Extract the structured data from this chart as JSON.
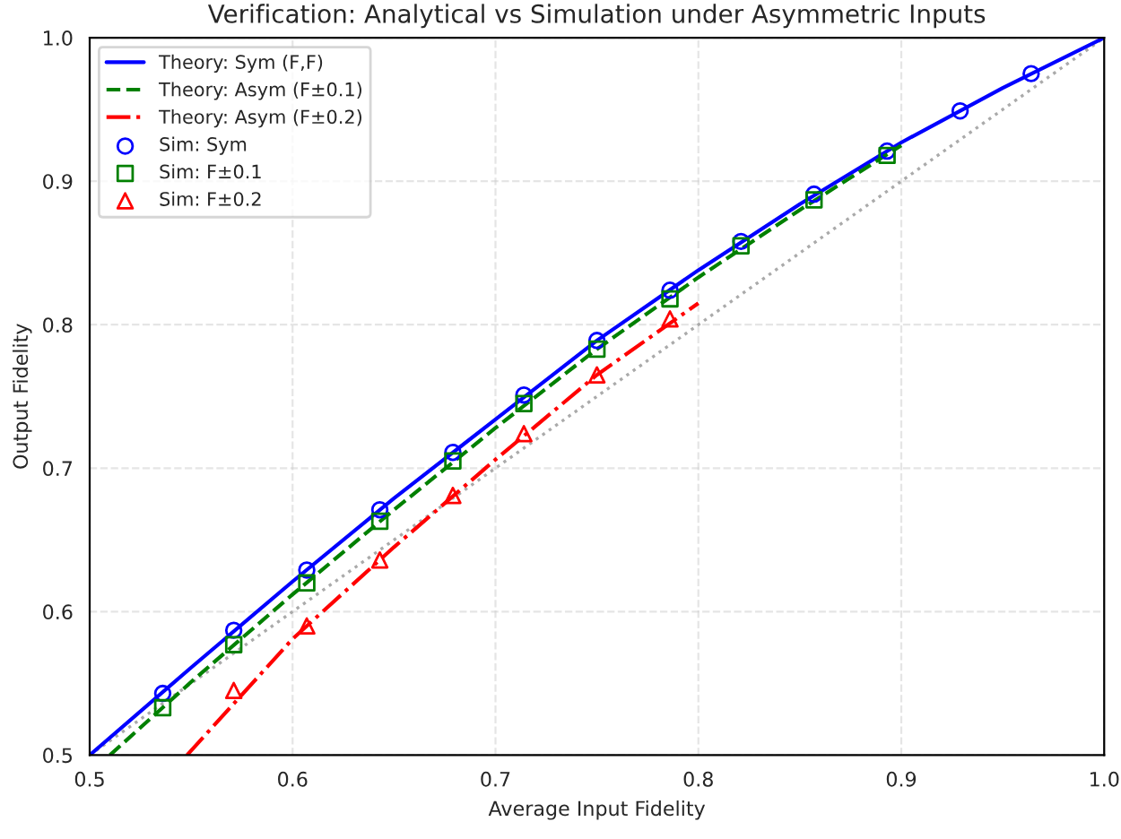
{
  "chart_data": {
    "type": "line",
    "title": "Verification: Analytical vs Simulation under Asymmetric Inputs",
    "xlabel": "Average Input Fidelity",
    "ylabel": "Output Fidelity",
    "xlim": [
      0.5,
      1.0
    ],
    "ylim": [
      0.5,
      1.0
    ],
    "xticks": [
      0.5,
      0.6,
      0.7,
      0.8,
      0.9,
      {
        "value": 1,
        "label": "1.0"
      }
    ],
    "yticks": [
      0.5,
      0.6,
      0.7,
      0.8,
      0.9,
      {
        "value": 1,
        "label": "1.0"
      }
    ],
    "grid": true,
    "legend": "top left",
    "series": [
      {
        "type": "line",
        "color": "#aaaaaa",
        "line_style": "dotted",
        "x": [
          0.5,
          1.0
        ],
        "values": [
          0.5,
          1.0
        ]
      },
      {
        "type": "line",
        "name": "Theory: Sym (F,F)",
        "color": "#0000ff",
        "line_style": "solid",
        "x": [
          0.5,
          0.55,
          0.6,
          0.65,
          0.7,
          0.75,
          0.8,
          0.85,
          0.9,
          0.95,
          1.0
        ],
        "values": [
          0.5,
          0.561,
          0.621,
          0.679,
          0.734,
          0.789,
          0.838,
          0.884,
          0.927,
          0.965,
          1.0
        ]
      },
      {
        "type": "line",
        "name": "Theory: Asym (F±0.1)",
        "color": "#008000",
        "line_style": "dashed",
        "x": [
          0.51,
          0.55,
          0.6,
          0.65,
          0.7,
          0.75,
          0.8,
          0.85,
          0.9
        ],
        "values": [
          0.5,
          0.551,
          0.612,
          0.671,
          0.728,
          0.783,
          0.833,
          0.88,
          0.925
        ]
      },
      {
        "type": "line",
        "name": "Theory: Asym (F±0.2)",
        "color": "#ff0000",
        "line_style": "dashdot",
        "x": [
          0.548,
          0.6,
          0.65,
          0.7,
          0.75,
          0.8
        ],
        "values": [
          0.5,
          0.581,
          0.645,
          0.706,
          0.765,
          0.815
        ]
      },
      {
        "type": "scatter",
        "name": "Sim: Sym",
        "color": "#0000ff",
        "marker": "circle",
        "x": [
          0.536,
          0.571,
          0.607,
          0.643,
          0.679,
          0.714,
          0.75,
          0.786,
          0.821,
          0.857,
          0.893,
          0.929,
          0.964
        ],
        "values": [
          0.543,
          0.587,
          0.629,
          0.671,
          0.711,
          0.751,
          0.789,
          0.824,
          0.858,
          0.891,
          0.921,
          0.949,
          0.975
        ]
      },
      {
        "type": "scatter",
        "name": "Sim: F±0.1",
        "color": "#008000",
        "marker": "square",
        "x": [
          0.536,
          0.571,
          0.607,
          0.643,
          0.679,
          0.714,
          0.75,
          0.786,
          0.821,
          0.857,
          0.893
        ],
        "values": [
          0.533,
          0.577,
          0.62,
          0.663,
          0.705,
          0.745,
          0.783,
          0.818,
          0.855,
          0.887,
          0.918
        ]
      },
      {
        "type": "scatter",
        "name": "Sim: F±0.2",
        "color": "#ff0000",
        "marker": "triangle",
        "x": [
          0.571,
          0.607,
          0.643,
          0.679,
          0.714,
          0.75,
          0.786
        ],
        "values": [
          0.545,
          0.59,
          0.636,
          0.681,
          0.724,
          0.765,
          0.804
        ]
      }
    ]
  }
}
